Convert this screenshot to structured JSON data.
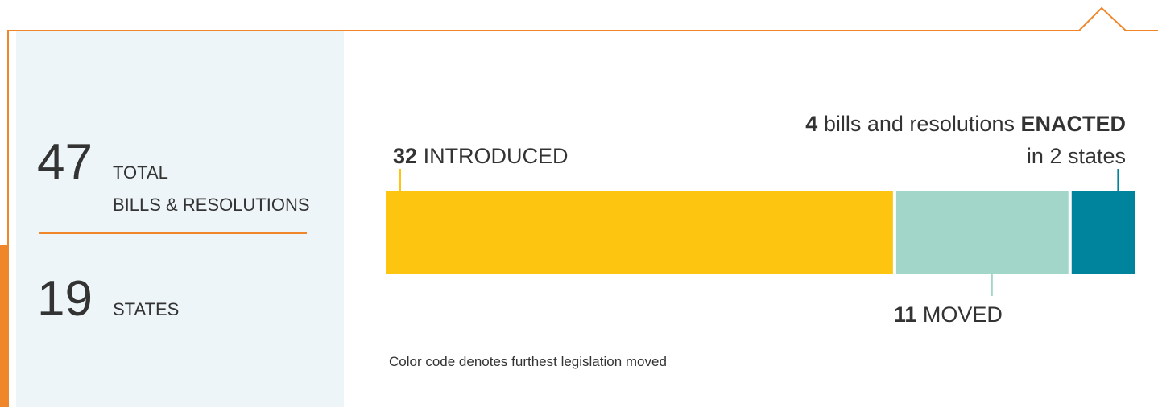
{
  "stats": [
    {
      "value": 47,
      "label": "TOTAL",
      "sublabel": "BILLS & RESOLUTIONS"
    },
    {
      "value": 19,
      "label": "STATES"
    }
  ],
  "bar": {
    "segments": [
      {
        "value": 32,
        "label": "INTRODUCED",
        "color": "#fdc50f"
      },
      {
        "value": 11,
        "label": "MOVED",
        "color": "#a1d6c9"
      },
      {
        "value": 4,
        "text": "bills and resolutions",
        "label": "ENACTED",
        "note": "in 2 states",
        "color": "#00849d"
      }
    ]
  },
  "footnote": "Color code denotes furthest legislation moved"
}
